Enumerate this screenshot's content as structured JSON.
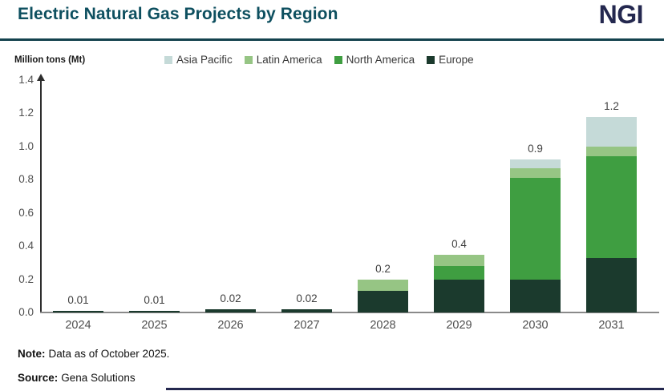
{
  "header": {
    "title": "Electric Natural Gas Projects by Region",
    "logo": "NGI"
  },
  "legend": [
    {
      "label": "Asia Pacific",
      "color": "#c5dad8"
    },
    {
      "label": "Latin America",
      "color": "#96c584"
    },
    {
      "label": "North America",
      "color": "#3f9e41"
    },
    {
      "label": "Europe",
      "color": "#1b3a2d"
    }
  ],
  "chart_data": {
    "type": "bar",
    "stacked": true,
    "title": "Electric Natural Gas Projects by Region",
    "ylabel": "Million tons (Mt)",
    "xlabel": "",
    "ylim": [
      0,
      1.4
    ],
    "yticks": [
      "0.0",
      "0.2",
      "0.4",
      "0.6",
      "0.8",
      "1.0",
      "1.2",
      "1.4"
    ],
    "grid": false,
    "legend_position": "top",
    "categories": [
      "2024",
      "2025",
      "2026",
      "2027",
      "2028",
      "2029",
      "2030",
      "2031"
    ],
    "series": [
      {
        "name": "Europe",
        "color": "#1b3a2d",
        "values": [
          0.01,
          0.01,
          0.02,
          0.02,
          0.13,
          0.2,
          0.2,
          0.33
        ]
      },
      {
        "name": "North America",
        "color": "#3f9e41",
        "values": [
          0,
          0,
          0,
          0,
          0,
          0.08,
          0.61,
          0.61
        ]
      },
      {
        "name": "Latin America",
        "color": "#96c584",
        "values": [
          0,
          0,
          0,
          0,
          0.07,
          0.07,
          0.06,
          0.06
        ]
      },
      {
        "name": "Asia Pacific",
        "color": "#c5dad8",
        "values": [
          0,
          0,
          0,
          0,
          0,
          0,
          0.05,
          0.18
        ]
      }
    ],
    "total_labels": [
      "0.01",
      "0.01",
      "0.02",
      "0.02",
      "0.2",
      "0.4",
      "0.9",
      "1.2"
    ]
  },
  "notes": {
    "note_label": "Note:",
    "note_text": "Data as of October 2025.",
    "source_label": "Source:",
    "source_text": "Gena Solutions"
  }
}
